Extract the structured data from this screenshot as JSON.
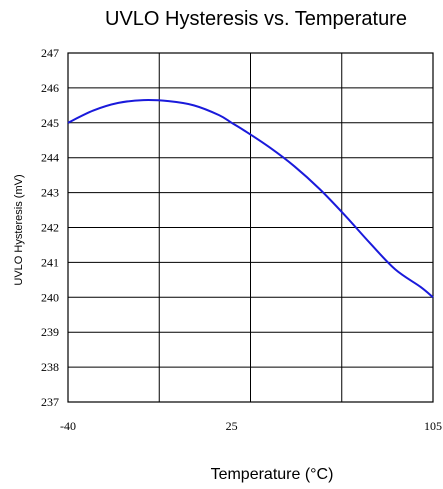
{
  "chart_data": {
    "type": "line",
    "title": "UVLO Hysteresis vs. Temperature",
    "xlabel": "Temperature (°C)",
    "ylabel": "UVLO Hysteresis (mV)",
    "xlim": [
      -40,
      105
    ],
    "ylim": [
      237,
      247
    ],
    "x_ticks": [
      "-40",
      "25",
      "105"
    ],
    "y_ticks": [
      "247",
      "246",
      "245",
      "244",
      "243",
      "242",
      "241",
      "240",
      "239",
      "238",
      "237"
    ],
    "grid": true,
    "colors": {
      "line": "#1a1adb",
      "grid": "#000000"
    },
    "series": [
      {
        "x": [
          -40,
          -30,
          -20,
          -10,
          0,
          10,
          20,
          25,
          30,
          40,
          50,
          60,
          70,
          80,
          90,
          100,
          105
        ],
        "values": [
          245.0,
          245.35,
          245.57,
          245.65,
          245.62,
          245.5,
          245.22,
          245.0,
          244.78,
          244.3,
          243.75,
          243.1,
          242.35,
          241.55,
          240.8,
          240.3,
          240.0
        ]
      }
    ]
  }
}
